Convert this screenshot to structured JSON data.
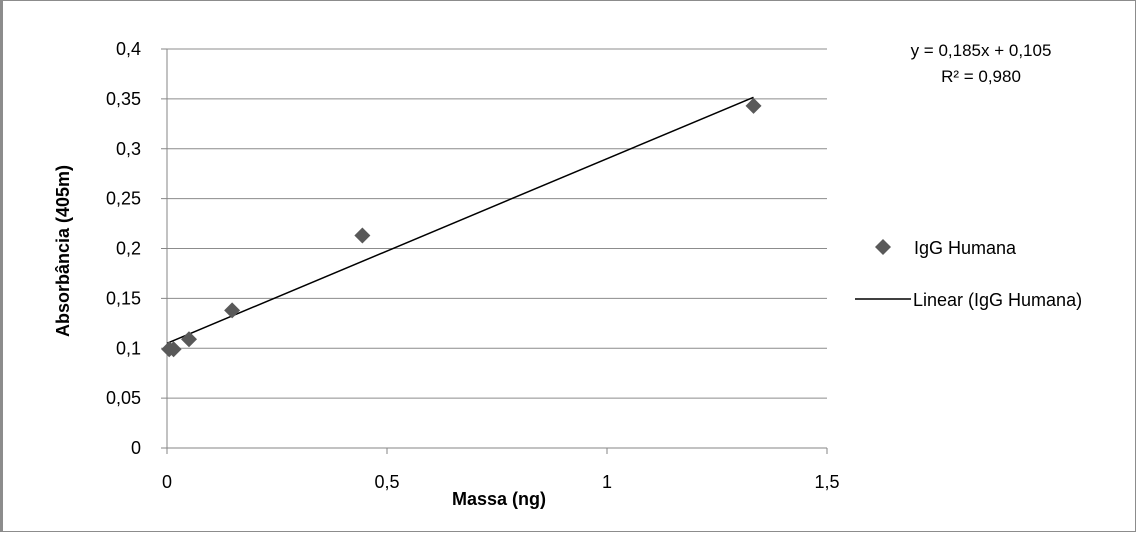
{
  "chart_data": {
    "type": "scatter",
    "title": "",
    "xlabel": "Massa (ng)",
    "ylabel": "Absorbância (405m)",
    "xlim": [
      0,
      1.5
    ],
    "ylim": [
      0,
      0.4
    ],
    "x_ticks": [
      "0",
      "0,5",
      "1",
      "1,5"
    ],
    "y_ticks": [
      "0",
      "0,05",
      "0,1",
      "0,15",
      "0,2",
      "0,25",
      "0,3",
      "0,35",
      "0,4"
    ],
    "grid": true,
    "legend_position": "right",
    "series": [
      {
        "name": "IgG Humana",
        "marker": "diamond",
        "color": "#595959",
        "points": [
          {
            "x": 0.005,
            "y": 0.099
          },
          {
            "x": 0.015,
            "y": 0.099
          },
          {
            "x": 0.05,
            "y": 0.109
          },
          {
            "x": 0.148,
            "y": 0.138
          },
          {
            "x": 0.444,
            "y": 0.213
          },
          {
            "x": 1.333,
            "y": 0.343
          }
        ]
      }
    ],
    "trendline": {
      "name": "Linear (IgG Humana)",
      "slope": 0.185,
      "intercept": 0.105,
      "x_range": [
        0,
        1.333
      ],
      "color": "#000000",
      "equation_text": "y = 0,185x + 0,105",
      "r2_text": "R² = 0,980"
    }
  }
}
